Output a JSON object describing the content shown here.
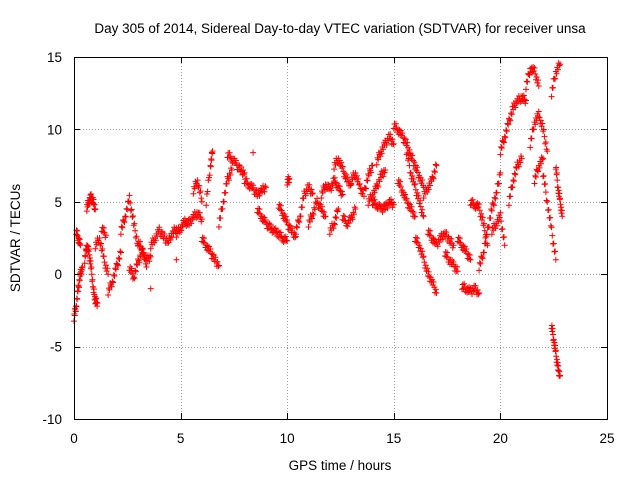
{
  "chart_data": {
    "type": "scatter",
    "title": "Day 305 of 2014, Sidereal Day-to-day VTEC variation (SDTVAR) for receiver unsa",
    "xlabel": "GPS time / hours",
    "ylabel": "SDTVAR / TECUs",
    "xlim": [
      0,
      25
    ],
    "ylim": [
      -10,
      15
    ],
    "x_ticks": [
      0,
      5,
      10,
      15,
      20,
      25
    ],
    "y_ticks": [
      -10,
      -5,
      0,
      5,
      10,
      15
    ],
    "grid": true,
    "marker": "+",
    "series": [
      {
        "name": "SDTVAR",
        "color": "#ff0000",
        "segments": [
          {
            "x": [
              0.0,
              0.1,
              0.2,
              0.3,
              0.4
            ],
            "y": [
              -3.0,
              -2.2,
              -1.0,
              0.0,
              0.5
            ]
          },
          {
            "x": [
              0.1,
              0.2,
              0.3
            ],
            "y": [
              3.0,
              2.5,
              2.0
            ]
          },
          {
            "x": [
              0.5,
              0.6,
              0.7,
              0.8,
              0.9,
              1.0,
              1.1
            ],
            "y": [
              1.0,
              2.0,
              1.5,
              0.5,
              -1.0,
              -1.8,
              -2.0
            ]
          },
          {
            "x": [
              0.6,
              0.7,
              0.8,
              0.9,
              1.0
            ],
            "y": [
              4.6,
              5.1,
              5.3,
              5.0,
              4.5
            ]
          },
          {
            "x": [
              1.0,
              1.2,
              1.4,
              1.6
            ],
            "y": [
              2.0,
              2.5,
              1.0,
              0.0
            ]
          },
          {
            "x": [
              1.3,
              1.5
            ],
            "y": [
              3.2,
              2.7
            ]
          },
          {
            "x": [
              1.6,
              1.8,
              2.0,
              2.2
            ],
            "y": [
              -1.2,
              -0.5,
              0.5,
              1.5
            ]
          },
          {
            "x": [
              2.2,
              2.4,
              2.6,
              2.8,
              3.0
            ],
            "y": [
              3.0,
              4.0,
              5.2,
              3.5,
              2.0
            ]
          },
          {
            "x": [
              2.6,
              2.8,
              3.0,
              3.2,
              3.4,
              3.6
            ],
            "y": [
              0.5,
              -0.2,
              0.8,
              1.6,
              1.0,
              1.2
            ]
          },
          {
            "x": [
              3.0,
              3.2,
              3.4
            ],
            "y": [
              2.2,
              1.8,
              0.5
            ]
          },
          {
            "x": [
              3.6
            ],
            "y": [
              -1.0
            ]
          },
          {
            "x": [
              3.6,
              3.8,
              4.0,
              4.2,
              4.4,
              4.6,
              4.8
            ],
            "y": [
              2.0,
              2.5,
              3.0,
              2.6,
              2.2,
              2.8,
              3.2
            ]
          },
          {
            "x": [
              4.8
            ],
            "y": [
              1.0
            ]
          },
          {
            "x": [
              4.8,
              5.0,
              5.2,
              5.4,
              5.6,
              5.8,
              6.0
            ],
            "y": [
              2.8,
              3.2,
              3.6,
              3.5,
              4.0,
              4.2,
              3.8
            ]
          },
          {
            "x": [
              5.6,
              5.8,
              6.0
            ],
            "y": [
              5.8,
              6.5,
              5.0
            ]
          },
          {
            "x": [
              6.0,
              6.2,
              6.4,
              6.6,
              6.8
            ],
            "y": [
              2.5,
              2.0,
              1.5,
              1.0,
              0.6
            ]
          },
          {
            "x": [
              6.2,
              6.4,
              6.5
            ],
            "y": [
              5.0,
              7.5,
              8.5
            ]
          },
          {
            "x": [
              6.8,
              7.0,
              7.2,
              7.4
            ],
            "y": [
              3.5,
              5.0,
              6.5,
              7.2
            ]
          },
          {
            "x": [
              7.2,
              7.4,
              7.6,
              7.8,
              8.0
            ],
            "y": [
              8.3,
              8.0,
              7.6,
              7.2,
              7.0
            ]
          },
          {
            "x": [
              8.4
            ],
            "y": [
              8.4
            ]
          },
          {
            "x": [
              8.0,
              8.2,
              8.4,
              8.6,
              8.8,
              9.0
            ],
            "y": [
              6.5,
              6.2,
              5.9,
              5.5,
              5.8,
              6.0
            ]
          },
          {
            "x": [
              8.6,
              8.8,
              9.0,
              9.2,
              9.4,
              9.6,
              9.8,
              10.0
            ],
            "y": [
              4.5,
              4.0,
              3.5,
              3.2,
              3.0,
              2.8,
              2.5,
              2.3
            ]
          },
          {
            "x": [
              9.6,
              9.8,
              10.0,
              10.2,
              10.4
            ],
            "y": [
              4.8,
              4.2,
              3.5,
              3.0,
              2.6
            ]
          },
          {
            "x": [
              10.0,
              10.1
            ],
            "y": [
              6.4,
              6.6
            ]
          },
          {
            "x": [
              10.4,
              10.6,
              10.8,
              11.0,
              11.2
            ],
            "y": [
              3.0,
              4.0,
              5.5,
              6.0,
              5.6
            ]
          },
          {
            "x": [
              11.0,
              11.2,
              11.4,
              11.6,
              11.8
            ],
            "y": [
              3.5,
              4.2,
              5.0,
              4.5,
              4.0
            ]
          },
          {
            "x": [
              11.6,
              11.8,
              12.0,
              12.2,
              12.4,
              12.6
            ],
            "y": [
              5.5,
              6.2,
              5.8,
              6.5,
              6.0,
              5.5
            ]
          },
          {
            "x": [
              12.0,
              12.2,
              12.4
            ],
            "y": [
              3.0,
              3.5,
              4.5
            ]
          },
          {
            "x": [
              12.2,
              12.4,
              12.6,
              12.8,
              13.0
            ],
            "y": [
              7.5,
              8.0,
              7.2,
              6.5,
              6.2
            ]
          },
          {
            "x": [
              12.6,
              12.8,
              13.0,
              13.2
            ],
            "y": [
              4.0,
              3.5,
              3.8,
              4.5
            ]
          },
          {
            "x": [
              13.0,
              13.2,
              13.4,
              13.6,
              13.8,
              14.0
            ],
            "y": [
              6.5,
              7.0,
              6.0,
              5.5,
              6.8,
              7.5
            ]
          },
          {
            "x": [
              13.8,
              14.0,
              14.2,
              14.4,
              14.6
            ],
            "y": [
              5.0,
              5.5,
              6.0,
              6.8,
              7.2
            ]
          },
          {
            "x": [
              14.2,
              14.4,
              14.6,
              14.8,
              15.0
            ],
            "y": [
              7.8,
              8.5,
              9.0,
              9.5,
              9.0
            ]
          },
          {
            "x": [
              14.0,
              14.2,
              14.4,
              14.6,
              14.8,
              15.0
            ],
            "y": [
              5.0,
              4.8,
              4.5,
              4.6,
              5.0,
              4.8
            ]
          },
          {
            "x": [
              15.0,
              15.2,
              15.4,
              15.6,
              15.8,
              16.0,
              16.2,
              16.4
            ],
            "y": [
              10.3,
              10.0,
              9.5,
              9.0,
              8.2,
              7.5,
              6.8,
              6.0
            ]
          },
          {
            "x": [
              15.2,
              15.4,
              15.6,
              15.8,
              16.0
            ],
            "y": [
              6.5,
              5.8,
              5.0,
              4.5,
              4.0
            ]
          },
          {
            "x": [
              15.6,
              15.8,
              16.0,
              16.2,
              16.4
            ],
            "y": [
              8.5,
              7.0,
              6.0,
              5.0,
              4.0
            ]
          },
          {
            "x": [
              16.0,
              16.2,
              16.4,
              16.6,
              16.8,
              17.0
            ],
            "y": [
              2.5,
              2.0,
              1.0,
              0.0,
              -0.5,
              -1.3
            ]
          },
          {
            "x": [
              16.4,
              16.6,
              16.8,
              17.0
            ],
            "y": [
              5.5,
              6.0,
              6.5,
              7.5
            ]
          },
          {
            "x": [
              16.6,
              16.8,
              17.0,
              17.2,
              17.4,
              17.6,
              17.8
            ],
            "y": [
              3.0,
              2.5,
              2.0,
              2.5,
              2.8,
              2.4,
              2.0
            ]
          },
          {
            "x": [
              17.4,
              17.6,
              17.8,
              18.0
            ],
            "y": [
              1.5,
              1.0,
              0.6,
              0.2
            ]
          },
          {
            "x": [
              18.0,
              18.2,
              18.4,
              18.6
            ],
            "y": [
              2.5,
              2.0,
              1.5,
              1.0
            ]
          },
          {
            "x": [
              18.2,
              18.4,
              18.6,
              18.8,
              19.0
            ],
            "y": [
              -0.8,
              -1.0,
              -1.2,
              -1.0,
              -1.3
            ]
          },
          {
            "x": [
              18.6,
              18.8,
              19.0,
              19.2,
              19.4
            ],
            "y": [
              5.0,
              4.8,
              4.6,
              3.5,
              2.0
            ]
          },
          {
            "x": [
              19.0,
              19.2,
              19.4,
              19.6,
              19.8,
              20.0
            ],
            "y": [
              0.5,
              1.5,
              3.0,
              4.5,
              5.5,
              7.0
            ]
          },
          {
            "x": [
              19.6,
              19.8,
              20.0,
              20.2
            ],
            "y": [
              3.0,
              3.5,
              4.0,
              2.0
            ]
          },
          {
            "x": [
              20.0,
              20.2,
              20.4,
              20.6,
              20.8,
              21.0,
              21.2
            ],
            "y": [
              8.5,
              9.5,
              10.5,
              11.5,
              12.0,
              12.2,
              12.0
            ]
          },
          {
            "x": [
              20.4,
              20.6,
              20.8,
              21.0
            ],
            "y": [
              5.0,
              6.5,
              7.5,
              8.0
            ]
          },
          {
            "x": [
              21.2,
              21.4,
              21.6,
              21.8
            ],
            "y": [
              13.0,
              14.2,
              14.0,
              13.0
            ]
          },
          {
            "x": [
              21.4,
              21.6,
              21.8,
              22.0,
              22.2
            ],
            "y": [
              9.0,
              10.5,
              11.0,
              10.0,
              8.5
            ]
          },
          {
            "x": [
              21.6,
              21.8,
              22.0
            ],
            "y": [
              6.5,
              7.5,
              8.0
            ]
          },
          {
            "x": [
              22.0,
              22.2,
              22.4,
              22.6
            ],
            "y": [
              7.0,
              5.0,
              3.0,
              1.0
            ]
          },
          {
            "x": [
              22.4,
              22.5,
              22.6,
              22.7,
              22.8
            ],
            "y": [
              -3.5,
              -4.5,
              -5.5,
              -6.5,
              -7.0
            ]
          },
          {
            "x": [
              22.4,
              22.6,
              22.8
            ],
            "y": [
              12.5,
              14.0,
              14.5
            ]
          },
          {
            "x": [
              22.6,
              22.7,
              22.8,
              22.9
            ],
            "y": [
              7.5,
              6.0,
              5.0,
              4.0
            ]
          }
        ]
      }
    ]
  }
}
